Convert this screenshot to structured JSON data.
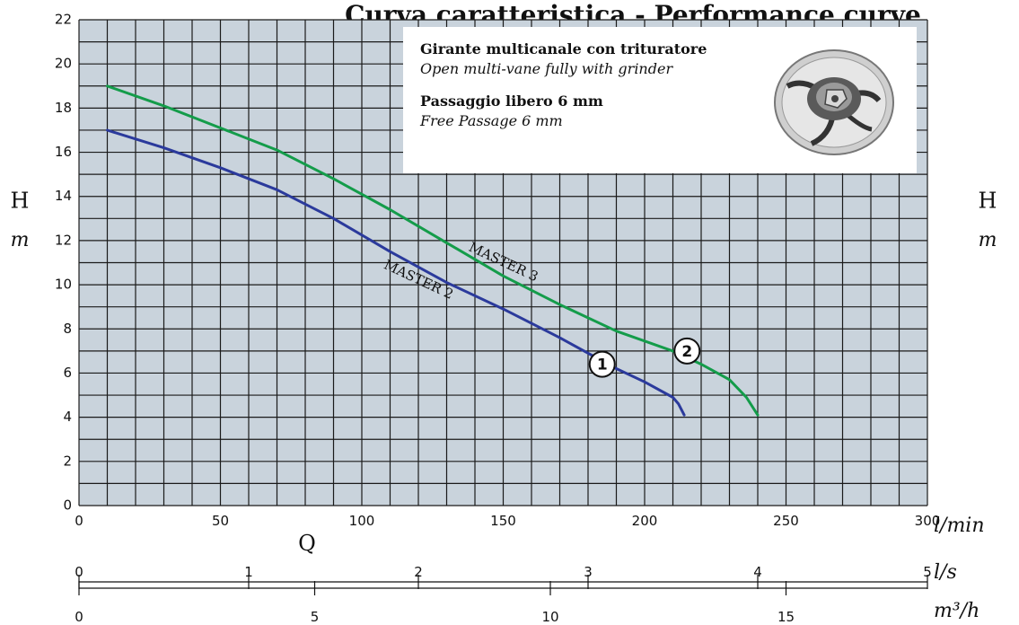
{
  "title": "Curva caratteristica - Performance curve",
  "info": {
    "impeller_it": "Girante multicanale con trituratore",
    "impeller_en": "Open multi-vane fully with grinder",
    "passage_it": "Passaggio libero 6 mm",
    "passage_en": "Free Passage 6 mm"
  },
  "axis": {
    "y_label_letter": "H",
    "y_label_unit": "m",
    "q_label": "Q",
    "x_unit_lmin": "l/min",
    "x_unit_ls": "l/s",
    "x_unit_m3h": "m³/h"
  },
  "colors": {
    "grid": "#1a1a1a",
    "plot_bg": "#c9d3dc",
    "master2": "#2b3a9c",
    "master3": "#149c4a"
  },
  "chart_data": {
    "type": "line",
    "title": "Curva caratteristica - Performance curve",
    "x_axis_primary": {
      "unit": "l/min",
      "range": [
        0,
        300
      ],
      "ticks": [
        0,
        50,
        100,
        150,
        200,
        250,
        300
      ]
    },
    "x_axis_ls": {
      "unit": "l/s",
      "range": [
        0,
        5
      ],
      "ticks": [
        0,
        1,
        2,
        3,
        4,
        5
      ]
    },
    "x_axis_m3h": {
      "unit": "m³/h",
      "range": [
        0,
        18
      ],
      "ticks": [
        0,
        5,
        10,
        15
      ]
    },
    "y_axis": {
      "label": "H",
      "unit": "m",
      "range": [
        0,
        22
      ],
      "ticks": [
        0,
        2,
        4,
        6,
        8,
        10,
        12,
        14,
        16,
        18,
        20,
        22
      ]
    },
    "grid": true,
    "series": [
      {
        "name": "MASTER 2",
        "marker": "1",
        "color": "#2b3a9c",
        "points": [
          [
            10,
            17
          ],
          [
            30,
            16.2
          ],
          [
            50,
            15.3
          ],
          [
            70,
            14.3
          ],
          [
            90,
            13
          ],
          [
            110,
            11.5
          ],
          [
            130,
            10.1
          ],
          [
            150,
            8.9
          ],
          [
            170,
            7.6
          ],
          [
            180,
            6.9
          ],
          [
            190,
            6.2
          ],
          [
            200,
            5.6
          ],
          [
            210,
            4.9
          ],
          [
            212,
            4.6
          ],
          [
            214,
            4.1
          ]
        ]
      },
      {
        "name": "MASTER 3",
        "marker": "2",
        "color": "#149c4a",
        "points": [
          [
            10,
            19
          ],
          [
            30,
            18.1
          ],
          [
            50,
            17.1
          ],
          [
            70,
            16.1
          ],
          [
            90,
            14.8
          ],
          [
            110,
            13.4
          ],
          [
            130,
            11.9
          ],
          [
            150,
            10.4
          ],
          [
            170,
            9.1
          ],
          [
            190,
            7.9
          ],
          [
            210,
            7
          ],
          [
            220,
            6.4
          ],
          [
            230,
            5.7
          ],
          [
            236,
            4.9
          ],
          [
            240,
            4.1
          ]
        ]
      }
    ],
    "markers": [
      {
        "label": "1",
        "series": "MASTER 2",
        "x": 185,
        "y": 6.4
      },
      {
        "label": "2",
        "series": "MASTER 3",
        "x": 215,
        "y": 7.0
      }
    ]
  }
}
